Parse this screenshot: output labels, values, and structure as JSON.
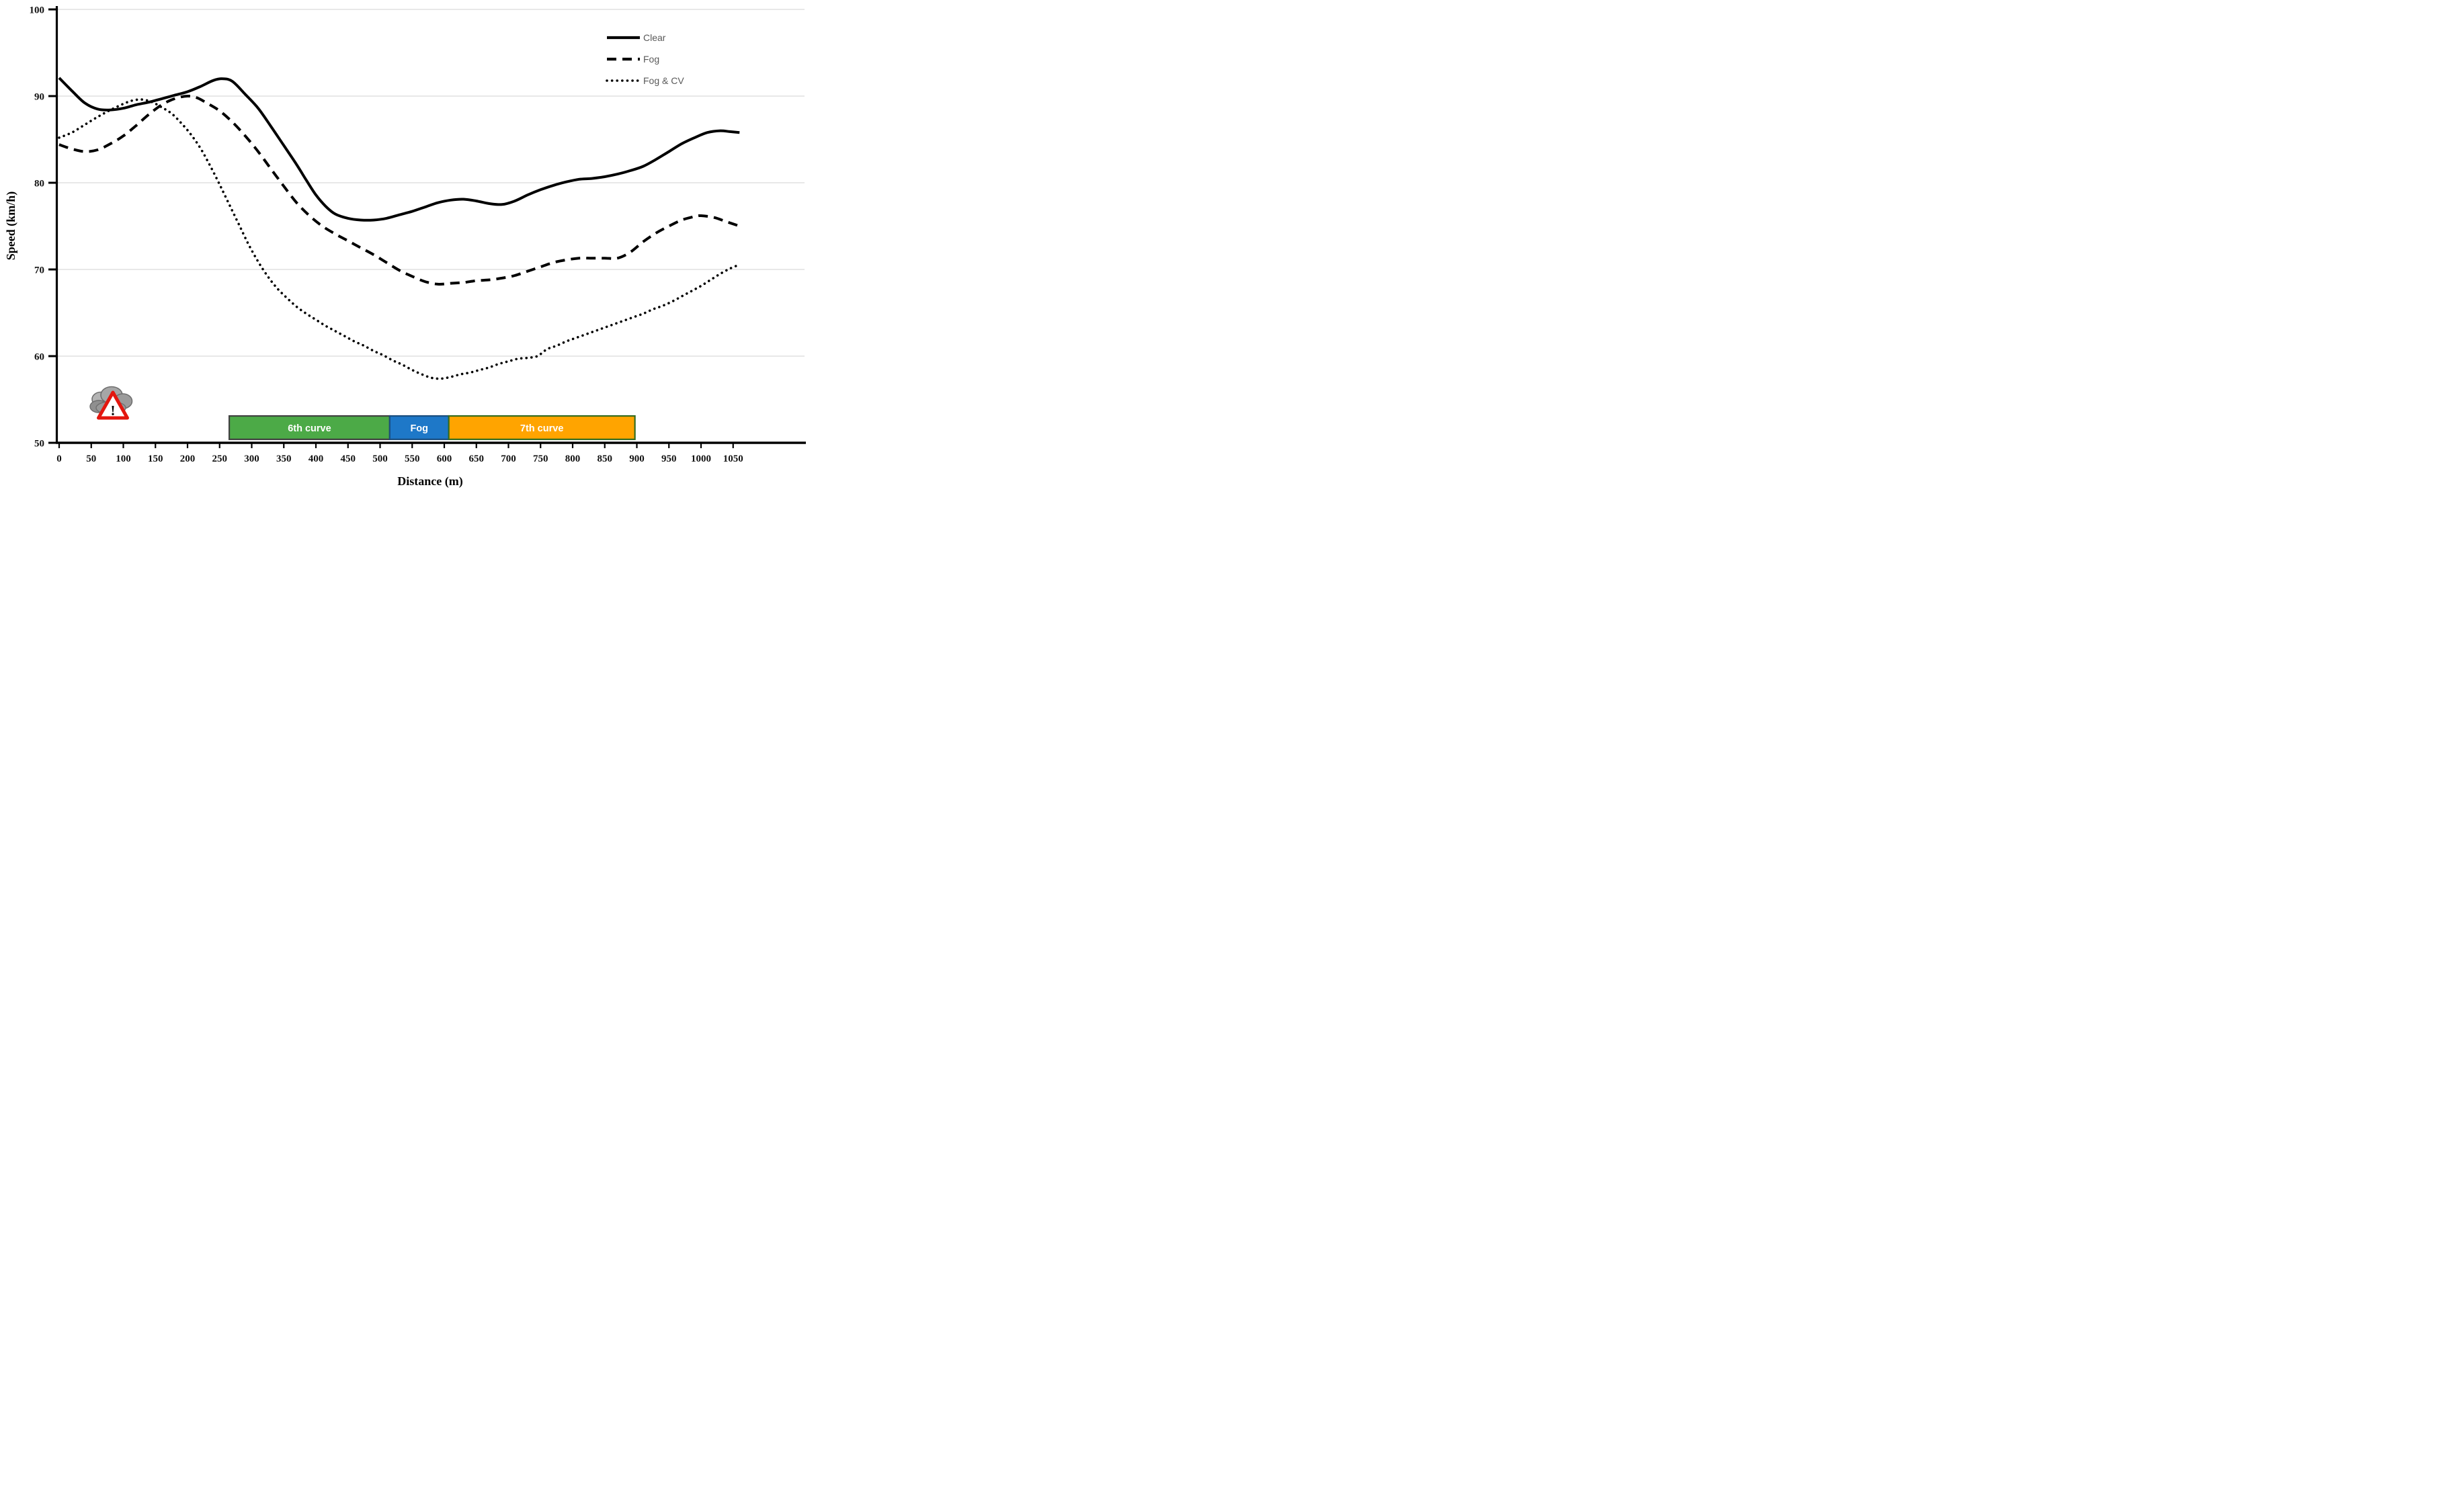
{
  "figure": {
    "background": "#ffffff",
    "grid_color": "#d9d9d9",
    "axis_color": "#000000",
    "legend_text_color": "#595959"
  },
  "chart_data": {
    "type": "line",
    "title": "",
    "xlabel": "Distance (m)",
    "ylabel": "Speed (km/h)",
    "xlim": [
      0,
      1160
    ],
    "ylim": [
      50,
      100
    ],
    "x_ticks": [
      0,
      50,
      100,
      150,
      200,
      250,
      300,
      350,
      400,
      450,
      500,
      550,
      600,
      650,
      700,
      750,
      800,
      850,
      900,
      950,
      1000,
      1050
    ],
    "y_ticks": [
      50,
      60,
      70,
      80,
      90,
      100
    ],
    "grid": "horizontal gridlines at 60,70,80,90,100",
    "legend_position": "top-right inside plot",
    "series": [
      {
        "name": "Clear",
        "style": "solid",
        "color": "#000000",
        "points": [
          [
            0,
            92.1
          ],
          [
            20,
            90.6
          ],
          [
            40,
            89.2
          ],
          [
            60,
            88.5
          ],
          [
            80,
            88.4
          ],
          [
            100,
            88.6
          ],
          [
            120,
            89.0
          ],
          [
            140,
            89.3
          ],
          [
            160,
            89.7
          ],
          [
            180,
            90.1
          ],
          [
            200,
            90.5
          ],
          [
            220,
            91.1
          ],
          [
            240,
            91.8
          ],
          [
            255,
            92.0
          ],
          [
            270,
            91.7
          ],
          [
            290,
            90.2
          ],
          [
            310,
            88.6
          ],
          [
            330,
            86.5
          ],
          [
            350,
            84.3
          ],
          [
            370,
            82.1
          ],
          [
            385,
            80.3
          ],
          [
            400,
            78.6
          ],
          [
            415,
            77.3
          ],
          [
            430,
            76.4
          ],
          [
            450,
            75.9
          ],
          [
            470,
            75.7
          ],
          [
            490,
            75.7
          ],
          [
            510,
            75.9
          ],
          [
            530,
            76.3
          ],
          [
            550,
            76.7
          ],
          [
            570,
            77.2
          ],
          [
            590,
            77.7
          ],
          [
            610,
            78.0
          ],
          [
            630,
            78.1
          ],
          [
            650,
            77.9
          ],
          [
            670,
            77.6
          ],
          [
            690,
            77.5
          ],
          [
            710,
            77.9
          ],
          [
            730,
            78.6
          ],
          [
            750,
            79.2
          ],
          [
            770,
            79.7
          ],
          [
            790,
            80.1
          ],
          [
            810,
            80.4
          ],
          [
            830,
            80.5
          ],
          [
            850,
            80.7
          ],
          [
            870,
            81.0
          ],
          [
            890,
            81.4
          ],
          [
            910,
            81.9
          ],
          [
            930,
            82.7
          ],
          [
            950,
            83.6
          ],
          [
            970,
            84.5
          ],
          [
            990,
            85.2
          ],
          [
            1010,
            85.8
          ],
          [
            1030,
            86.0
          ],
          [
            1045,
            85.9
          ],
          [
            1060,
            85.8
          ]
        ]
      },
      {
        "name": "Fog",
        "style": "dashed",
        "color": "#000000",
        "points": [
          [
            0,
            84.4
          ],
          [
            20,
            83.9
          ],
          [
            40,
            83.6
          ],
          [
            60,
            83.8
          ],
          [
            80,
            84.5
          ],
          [
            100,
            85.4
          ],
          [
            120,
            86.6
          ],
          [
            140,
            87.9
          ],
          [
            160,
            89.0
          ],
          [
            180,
            89.7
          ],
          [
            200,
            90.0
          ],
          [
            215,
            89.8
          ],
          [
            230,
            89.2
          ],
          [
            250,
            88.3
          ],
          [
            270,
            87.0
          ],
          [
            290,
            85.4
          ],
          [
            310,
            83.6
          ],
          [
            330,
            81.6
          ],
          [
            350,
            79.6
          ],
          [
            370,
            77.7
          ],
          [
            390,
            76.2
          ],
          [
            410,
            75.0
          ],
          [
            430,
            74.1
          ],
          [
            450,
            73.3
          ],
          [
            470,
            72.5
          ],
          [
            490,
            71.7
          ],
          [
            510,
            70.8
          ],
          [
            530,
            69.9
          ],
          [
            550,
            69.2
          ],
          [
            570,
            68.6
          ],
          [
            590,
            68.3
          ],
          [
            610,
            68.4
          ],
          [
            630,
            68.5
          ],
          [
            650,
            68.7
          ],
          [
            670,
            68.8
          ],
          [
            690,
            69.0
          ],
          [
            710,
            69.3
          ],
          [
            730,
            69.8
          ],
          [
            750,
            70.3
          ],
          [
            770,
            70.8
          ],
          [
            790,
            71.1
          ],
          [
            810,
            71.3
          ],
          [
            830,
            71.3
          ],
          [
            850,
            71.3
          ],
          [
            870,
            71.3
          ],
          [
            890,
            72.0
          ],
          [
            910,
            73.2
          ],
          [
            930,
            74.2
          ],
          [
            950,
            75.0
          ],
          [
            970,
            75.7
          ],
          [
            990,
            76.1
          ],
          [
            1000,
            76.2
          ],
          [
            1020,
            76.0
          ],
          [
            1040,
            75.5
          ],
          [
            1060,
            75.0
          ]
        ]
      },
      {
        "name": "Fog & CV",
        "style": "dotted",
        "color": "#000000",
        "points": [
          [
            0,
            85.2
          ],
          [
            20,
            85.8
          ],
          [
            40,
            86.7
          ],
          [
            60,
            87.6
          ],
          [
            80,
            88.4
          ],
          [
            100,
            89.1
          ],
          [
            115,
            89.5
          ],
          [
            130,
            89.6
          ],
          [
            145,
            89.3
          ],
          [
            160,
            88.7
          ],
          [
            175,
            88.0
          ],
          [
            190,
            86.9
          ],
          [
            205,
            85.6
          ],
          [
            220,
            84.0
          ],
          [
            235,
            82.0
          ],
          [
            250,
            79.8
          ],
          [
            265,
            77.5
          ],
          [
            280,
            75.2
          ],
          [
            295,
            72.9
          ],
          [
            310,
            70.9
          ],
          [
            325,
            69.2
          ],
          [
            340,
            67.8
          ],
          [
            355,
            66.7
          ],
          [
            370,
            65.7
          ],
          [
            385,
            64.9
          ],
          [
            400,
            64.2
          ],
          [
            415,
            63.5
          ],
          [
            430,
            62.9
          ],
          [
            445,
            62.3
          ],
          [
            460,
            61.7
          ],
          [
            475,
            61.2
          ],
          [
            490,
            60.6
          ],
          [
            505,
            60.1
          ],
          [
            520,
            59.5
          ],
          [
            535,
            59.0
          ],
          [
            550,
            58.4
          ],
          [
            565,
            57.9
          ],
          [
            580,
            57.5
          ],
          [
            595,
            57.4
          ],
          [
            610,
            57.6
          ],
          [
            625,
            57.9
          ],
          [
            640,
            58.1
          ],
          [
            655,
            58.4
          ],
          [
            670,
            58.7
          ],
          [
            685,
            59.1
          ],
          [
            700,
            59.4
          ],
          [
            715,
            59.7
          ],
          [
            730,
            59.8
          ],
          [
            745,
            60.0
          ],
          [
            760,
            60.8
          ],
          [
            775,
            61.2
          ],
          [
            790,
            61.7
          ],
          [
            805,
            62.1
          ],
          [
            820,
            62.5
          ],
          [
            835,
            62.9
          ],
          [
            850,
            63.3
          ],
          [
            865,
            63.7
          ],
          [
            880,
            64.1
          ],
          [
            895,
            64.5
          ],
          [
            910,
            64.9
          ],
          [
            925,
            65.4
          ],
          [
            940,
            65.8
          ],
          [
            955,
            66.3
          ],
          [
            970,
            66.9
          ],
          [
            985,
            67.5
          ],
          [
            1000,
            68.1
          ],
          [
            1015,
            68.8
          ],
          [
            1030,
            69.5
          ],
          [
            1045,
            70.1
          ],
          [
            1058,
            70.5
          ]
        ]
      }
    ],
    "zones": [
      {
        "label": "6th curve",
        "x_start": 265,
        "x_end": 515,
        "fill": "#4caa47",
        "border": "#404040",
        "text_color": "#ffffff"
      },
      {
        "label": "Fog",
        "x_start": 515,
        "x_end": 607,
        "fill": "#1e78c8",
        "border": "#1a4e7e",
        "text_color": "#ffffff"
      },
      {
        "label": "7th curve",
        "x_start": 607,
        "x_end": 897,
        "fill": "#ffa400",
        "border": "#336b1f",
        "text_color": "#ffffff"
      }
    ],
    "annotations": [
      {
        "type": "icon",
        "name": "fog-warning-icon",
        "x_range_m": [
          45,
          110
        ],
        "description": "gray storm clouds with red warning triangle",
        "exclamation": "!"
      }
    ]
  }
}
